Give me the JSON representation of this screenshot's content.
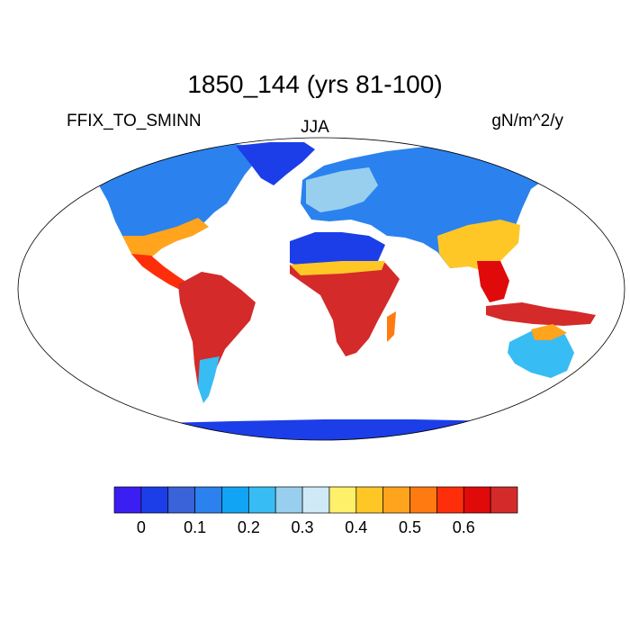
{
  "title": "1850_144 (yrs 81-100)",
  "variable": "FFIX_TO_SMINN",
  "season": "JJA",
  "units": "gN/m^2/y",
  "colorbar": {
    "colors": [
      "#3b1ef2",
      "#1c3ee8",
      "#3a62d9",
      "#2b82ee",
      "#12a4f4",
      "#38bcf4",
      "#98cfee",
      "#cfe9f7",
      "#fff06a",
      "#ffc726",
      "#ffa41c",
      "#ff7a10",
      "#ff2e0a",
      "#e00a0a",
      "#d42a2a"
    ],
    "labels": [
      "0",
      "0.1",
      "0.2",
      "0.3",
      "0.4",
      "0.5",
      "0.6"
    ]
  }
}
